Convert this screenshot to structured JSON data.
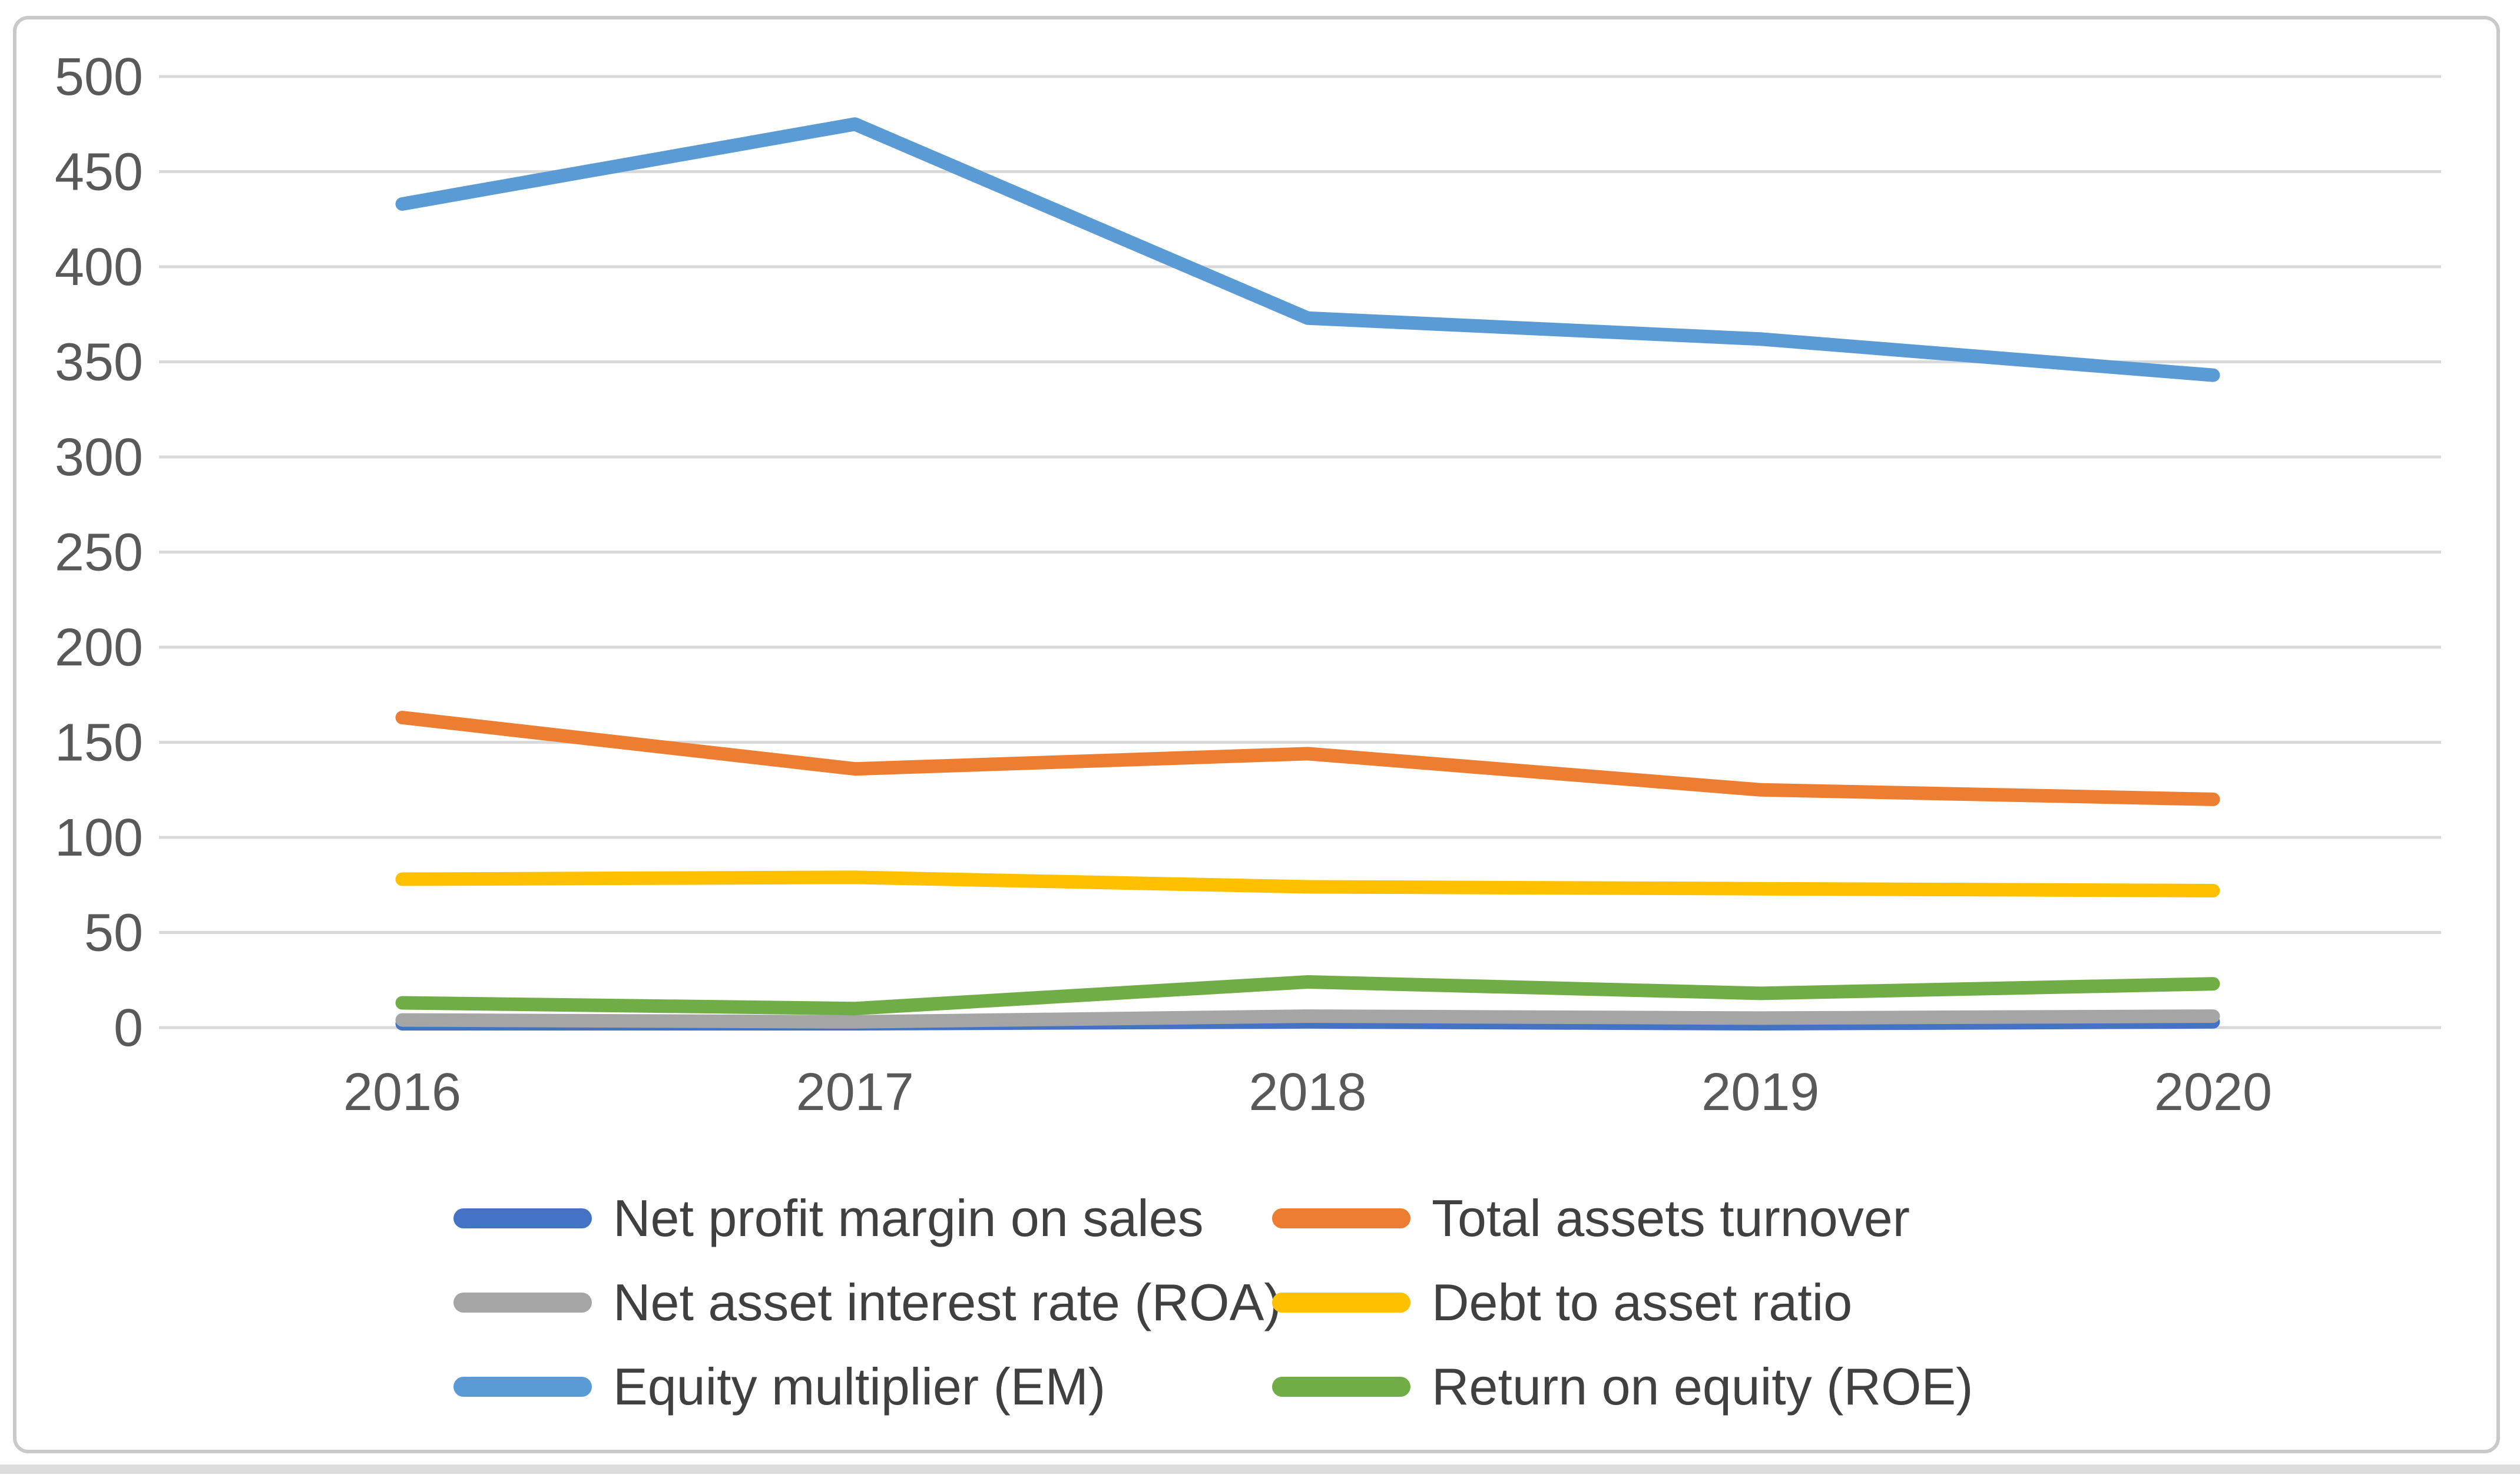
{
  "chart_data": {
    "type": "line",
    "title": "",
    "categories": [
      "2016",
      "2017",
      "2018",
      "2019",
      "2020"
    ],
    "series": [
      {
        "name": "Net profit margin on sales",
        "color": "#4472C4",
        "values": [
          2,
          2,
          3,
          2,
          3
        ]
      },
      {
        "name": "Total assets turnover",
        "color": "#ED7D31",
        "values": [
          163,
          136,
          144,
          125,
          120
        ]
      },
      {
        "name": "Net asset interest rate (ROA)",
        "color": "#A5A5A5",
        "values": [
          4,
          3,
          6,
          5,
          6
        ]
      },
      {
        "name": "Debt to asset ratio",
        "color": "#FFC000",
        "values": [
          78,
          79,
          74,
          73,
          72
        ]
      },
      {
        "name": "Equity multiplier (EM)",
        "color": "#5B9BD5",
        "values": [
          433,
          475,
          373,
          362,
          343
        ]
      },
      {
        "name": "Return on equity (ROE)",
        "color": "#70AD47",
        "values": [
          13,
          10,
          24,
          18,
          23
        ]
      }
    ],
    "y_axis": {
      "min": 0,
      "max": 500,
      "step": 50,
      "tick_labels": [
        "0",
        "50",
        "100",
        "150",
        "200",
        "250",
        "300",
        "350",
        "400",
        "450",
        "500"
      ]
    },
    "x_axis": {
      "tick_labels": [
        "2016",
        "2017",
        "2018",
        "2019",
        "2020"
      ]
    },
    "legend_position": "bottom",
    "legend_columns": 2,
    "grid": true,
    "style": {
      "grid_color": "#D9D9D9",
      "tick_label_color": "#595959",
      "legend_text_color": "#404040",
      "border_color": "#C9C9C9",
      "background": "#FFFFFF"
    }
  }
}
